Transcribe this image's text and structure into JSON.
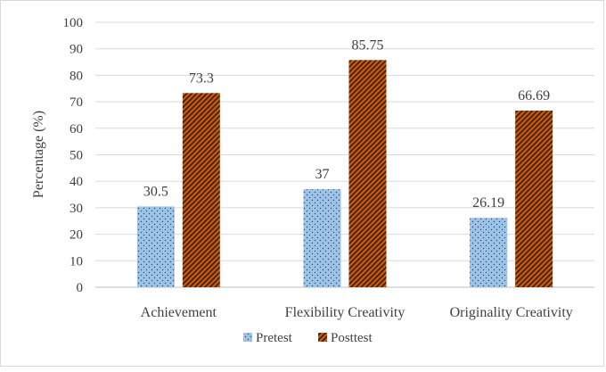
{
  "chart_data": {
    "type": "bar",
    "title": "",
    "xlabel": "",
    "ylabel": "Percentage (%)",
    "ylim": [
      0,
      100
    ],
    "yticks": [
      0,
      10,
      20,
      30,
      40,
      50,
      60,
      70,
      80,
      90,
      100
    ],
    "categories": [
      "Achievement",
      "Flexibility Creativity",
      "Originality Creativity"
    ],
    "series": [
      {
        "name": "Pretest",
        "values": [
          30.5,
          37,
          26.19
        ],
        "labels": [
          "30.5",
          "37",
          "26.19"
        ],
        "color": "#9dc3e6",
        "pattern": "dots"
      },
      {
        "name": "Posttest",
        "values": [
          73.3,
          85.75,
          66.69
        ],
        "labels": [
          "73.3",
          "85.75",
          "66.69"
        ],
        "color": "#c55a11",
        "pattern": "diagonal-hatch"
      }
    ],
    "grid": true,
    "legend_position": "bottom"
  }
}
